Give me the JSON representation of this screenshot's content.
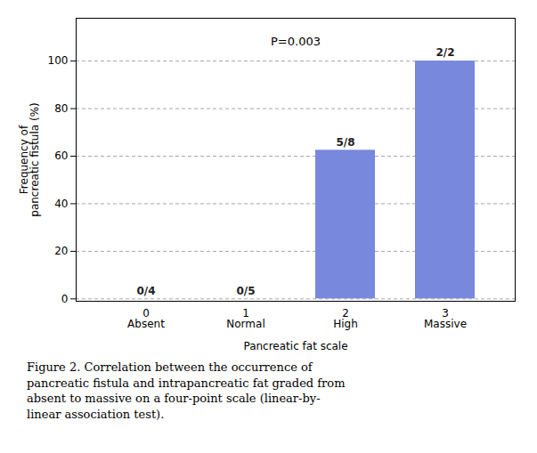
{
  "chart_data": {
    "type": "bar",
    "categories": [
      "0\nAbsent",
      "1\nNormal",
      "2\nHigh",
      "3\nMassive"
    ],
    "values": [
      0,
      0,
      62.5,
      100
    ],
    "value_labels": [
      "0/4",
      "0/5",
      "5/8",
      "2/2"
    ],
    "data_labels": true,
    "color": "#7788dd",
    "xlabel": "Pancreatic fat scale",
    "ylabel": "Frequency of\npancreatic fistula (%)",
    "ylim": [
      -1,
      118
    ],
    "yticks": [
      0,
      20,
      40,
      60,
      80,
      100
    ],
    "grid": true,
    "annotations": [
      {
        "text": "P=0.003",
        "y": 108
      }
    ],
    "caption": "Figure  2. Correlation between the occurrence of\npancreatic fistula and intrapancreatic fat graded from\nabsent to massive on a four-point scale (linear-by-\nlinear association test)."
  }
}
